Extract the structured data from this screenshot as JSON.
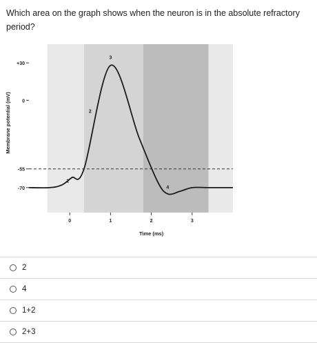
{
  "question": {
    "text": "Which area on the graph shows when the neuron is in the absolute refractory period?"
  },
  "chart_data": {
    "type": "line",
    "title": "",
    "xlabel": "Time (ms)",
    "ylabel": "Membrane potential (mV)",
    "x_ticks": [
      "0",
      "1",
      "2",
      "3"
    ],
    "y_ticks": [
      "+30",
      "0",
      "-55",
      "-70"
    ],
    "xlim": [
      -1.0,
      4.0
    ],
    "ylim": [
      -90,
      45
    ],
    "threshold": -55,
    "series": [
      {
        "x": [
          -1.0,
          -0.5,
          -0.2,
          0.05,
          0.35,
          1.0,
          1.7,
          2.15,
          2.4,
          2.7,
          3.0,
          3.4,
          4.0
        ],
        "y": [
          -70,
          -70,
          -68,
          -62,
          -55,
          28,
          -30,
          -65,
          -75,
          -73,
          -70,
          -70,
          -70
        ]
      }
    ],
    "shaded_regions": [
      {
        "x_start": -0.55,
        "x_end": 0.35,
        "shade": "#e9e9e9"
      },
      {
        "x_start": 0.35,
        "x_end": 1.8,
        "shade": "#d4d4d4"
      },
      {
        "x_start": 1.8,
        "x_end": 3.4,
        "shade": "#bcbcbc"
      },
      {
        "x_start": 3.4,
        "x_end": 4.0,
        "shade": "#e9e9e9"
      }
    ],
    "phase_labels": [
      {
        "text": "1",
        "x": -0.05,
        "y": -66
      },
      {
        "text": "2",
        "x": 0.5,
        "y": -10
      },
      {
        "text": "3",
        "x": 1.0,
        "y": 33
      },
      {
        "text": "4",
        "x": 2.4,
        "y": -71
      }
    ]
  },
  "options": [
    {
      "label": "2"
    },
    {
      "label": "4"
    },
    {
      "label": "1+2"
    },
    {
      "label": "2+3"
    }
  ]
}
